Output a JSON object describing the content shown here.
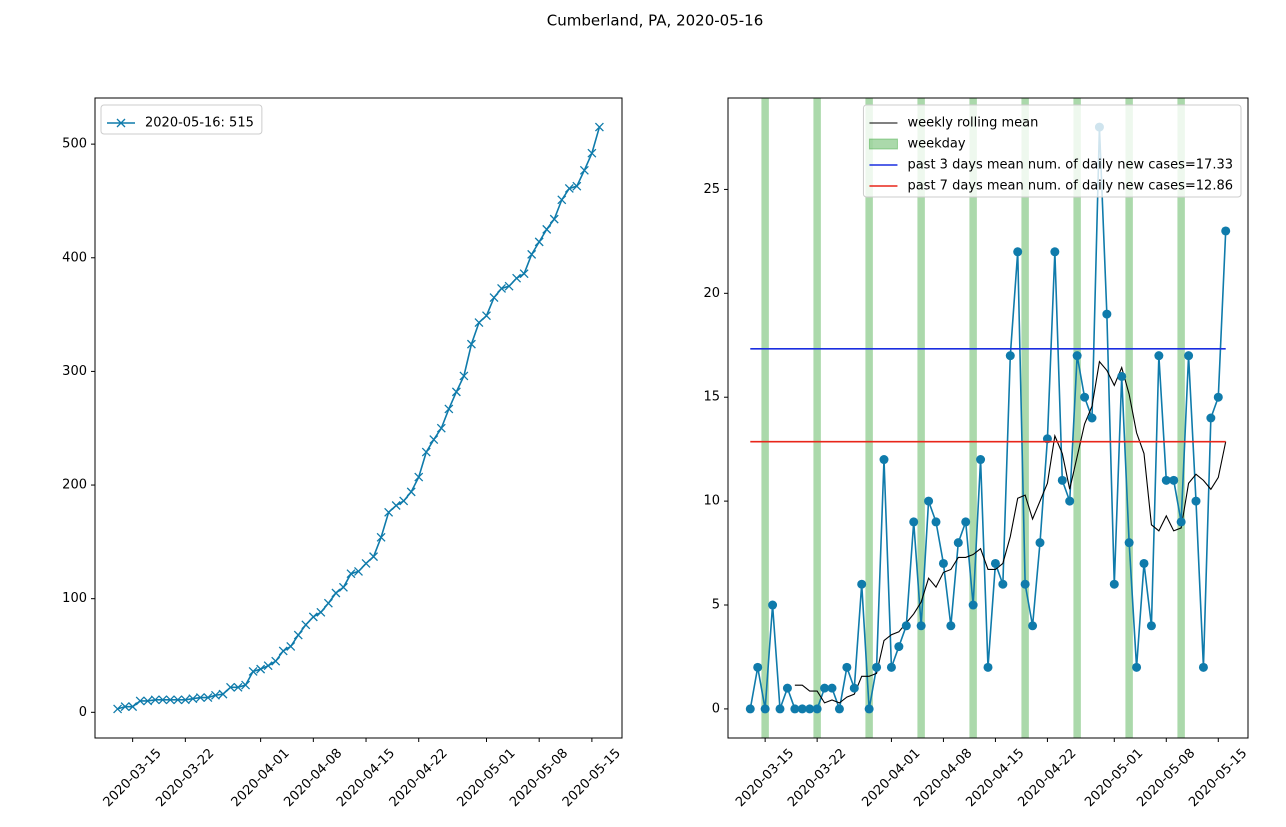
{
  "title": "Cumberland, PA, 2020-05-16",
  "chart_data": [
    {
      "type": "line",
      "x": [
        "2020-03-13",
        "2020-03-14",
        "2020-03-15",
        "2020-03-16",
        "2020-03-17",
        "2020-03-18",
        "2020-03-19",
        "2020-03-20",
        "2020-03-21",
        "2020-03-22",
        "2020-03-23",
        "2020-03-24",
        "2020-03-25",
        "2020-03-26",
        "2020-03-27",
        "2020-03-28",
        "2020-03-29",
        "2020-03-30",
        "2020-03-31",
        "2020-04-01",
        "2020-04-02",
        "2020-04-03",
        "2020-04-04",
        "2020-04-05",
        "2020-04-06",
        "2020-04-07",
        "2020-04-08",
        "2020-04-09",
        "2020-04-10",
        "2020-04-11",
        "2020-04-12",
        "2020-04-13",
        "2020-04-14",
        "2020-04-15",
        "2020-04-16",
        "2020-04-17",
        "2020-04-18",
        "2020-04-19",
        "2020-04-20",
        "2020-04-21",
        "2020-04-22",
        "2020-04-23",
        "2020-04-24",
        "2020-04-25",
        "2020-04-26",
        "2020-04-27",
        "2020-04-28",
        "2020-04-29",
        "2020-04-30",
        "2020-05-01",
        "2020-05-02",
        "2020-05-03",
        "2020-05-04",
        "2020-05-05",
        "2020-05-06",
        "2020-05-07",
        "2020-05-08",
        "2020-05-09",
        "2020-05-10",
        "2020-05-11",
        "2020-05-12",
        "2020-05-13",
        "2020-05-14",
        "2020-05-15",
        "2020-05-16"
      ],
      "series": [
        {
          "name": "2020-05-16: 515",
          "color": "#0f7bab",
          "marker": "x",
          "values": [
            3,
            5,
            5,
            10,
            10,
            11,
            11,
            11,
            11,
            11,
            12,
            13,
            13,
            15,
            16,
            22,
            22,
            24,
            36,
            38,
            41,
            45,
            54,
            58,
            68,
            77,
            84,
            88,
            96,
            105,
            110,
            122,
            124,
            131,
            137,
            154,
            176,
            182,
            186,
            194,
            207,
            229,
            240,
            250,
            267,
            282,
            296,
            324,
            343,
            349,
            365,
            373,
            375,
            382,
            386,
            403,
            414,
            425,
            434,
            451,
            461,
            463,
            477,
            492,
            515
          ]
        }
      ],
      "xlim": [
        "2020-03-10",
        "2020-05-19"
      ],
      "xticks": [
        "2020-03-15",
        "2020-03-22",
        "2020-04-01",
        "2020-04-08",
        "2020-04-15",
        "2020-04-22",
        "2020-05-01",
        "2020-05-08",
        "2020-05-15"
      ],
      "ylim": [
        -22.6,
        540.6
      ],
      "yticks": [
        0,
        100,
        200,
        300,
        400,
        500
      ],
      "legend": "upper left"
    },
    {
      "type": "line",
      "x": [
        "2020-03-13",
        "2020-03-14",
        "2020-03-15",
        "2020-03-16",
        "2020-03-17",
        "2020-03-18",
        "2020-03-19",
        "2020-03-20",
        "2020-03-21",
        "2020-03-22",
        "2020-03-23",
        "2020-03-24",
        "2020-03-25",
        "2020-03-26",
        "2020-03-27",
        "2020-03-28",
        "2020-03-29",
        "2020-03-30",
        "2020-03-31",
        "2020-04-01",
        "2020-04-02",
        "2020-04-03",
        "2020-04-04",
        "2020-04-05",
        "2020-04-06",
        "2020-04-07",
        "2020-04-08",
        "2020-04-09",
        "2020-04-10",
        "2020-04-11",
        "2020-04-12",
        "2020-04-13",
        "2020-04-14",
        "2020-04-15",
        "2020-04-16",
        "2020-04-17",
        "2020-04-18",
        "2020-04-19",
        "2020-04-20",
        "2020-04-21",
        "2020-04-22",
        "2020-04-23",
        "2020-04-24",
        "2020-04-25",
        "2020-04-26",
        "2020-04-27",
        "2020-04-28",
        "2020-04-29",
        "2020-04-30",
        "2020-05-01",
        "2020-05-02",
        "2020-05-03",
        "2020-05-04",
        "2020-05-05",
        "2020-05-06",
        "2020-05-07",
        "2020-05-08",
        "2020-05-09",
        "2020-05-10",
        "2020-05-11",
        "2020-05-12",
        "2020-05-13",
        "2020-05-14",
        "2020-05-15",
        "2020-05-16"
      ],
      "values": [
        0,
        2,
        0,
        5,
        0,
        1,
        0,
        0,
        0,
        0,
        1,
        1,
        0,
        2,
        1,
        6,
        0,
        2,
        12,
        2,
        3,
        4,
        9,
        4,
        10,
        9,
        7,
        4,
        8,
        9,
        5,
        12,
        2,
        7,
        6,
        17,
        22,
        6,
        4,
        8,
        13,
        22,
        11,
        10,
        17,
        15,
        14,
        28,
        19,
        6,
        16,
        8,
        2,
        7,
        4,
        17,
        11,
        11,
        9,
        17,
        10,
        2,
        14,
        15,
        23
      ],
      "color": "#0f7bab",
      "series": [
        {
          "name": "weekly rolling mean",
          "color": "#000000",
          "values": [
            null,
            null,
            null,
            null,
            null,
            null,
            1.14,
            1.14,
            0.86,
            0.86,
            0.29,
            0.43,
            0.29,
            0.57,
            0.71,
            1.57,
            1.57,
            1.71,
            3.29,
            3.57,
            3.71,
            4.14,
            4.57,
            5.14,
            6.29,
            5.86,
            6.57,
            6.71,
            7.29,
            7.29,
            7.43,
            7.71,
            6.71,
            6.71,
            7.0,
            8.29,
            10.14,
            10.29,
            9.14,
            10.0,
            10.86,
            13.14,
            12.29,
            10.57,
            12.14,
            13.71,
            14.57,
            16.71,
            16.29,
            15.57,
            16.43,
            15.14,
            13.29,
            12.29,
            8.86,
            8.57,
            9.29,
            8.57,
            8.71,
            10.86,
            11.29,
            11.0,
            10.57,
            11.14,
            12.86
          ]
        }
      ],
      "spans": {
        "name": "weekday",
        "color": "#2ca02c",
        "dates": [
          "2020-03-15",
          "2020-03-22",
          "2020-03-29",
          "2020-04-05",
          "2020-04-12",
          "2020-04-19",
          "2020-04-26",
          "2020-05-03",
          "2020-05-10"
        ]
      },
      "hlines": [
        {
          "name": "past 3 days mean num. of daily new cases=17.33",
          "color": "#1a2ee0",
          "value": 17.33
        },
        {
          "name": "past 7 days mean num. of daily new cases=12.86",
          "color": "#e8261a",
          "value": 12.86
        }
      ],
      "xlim": [
        "2020-03-10",
        "2020-05-19"
      ],
      "xticks": [
        "2020-03-15",
        "2020-03-22",
        "2020-04-01",
        "2020-04-08",
        "2020-04-15",
        "2020-04-22",
        "2020-05-01",
        "2020-05-08",
        "2020-05-15"
      ],
      "ylim": [
        -1.4,
        29.4
      ],
      "yticks": [
        0,
        5,
        10,
        15,
        20,
        25
      ],
      "legend": "upper right"
    }
  ]
}
